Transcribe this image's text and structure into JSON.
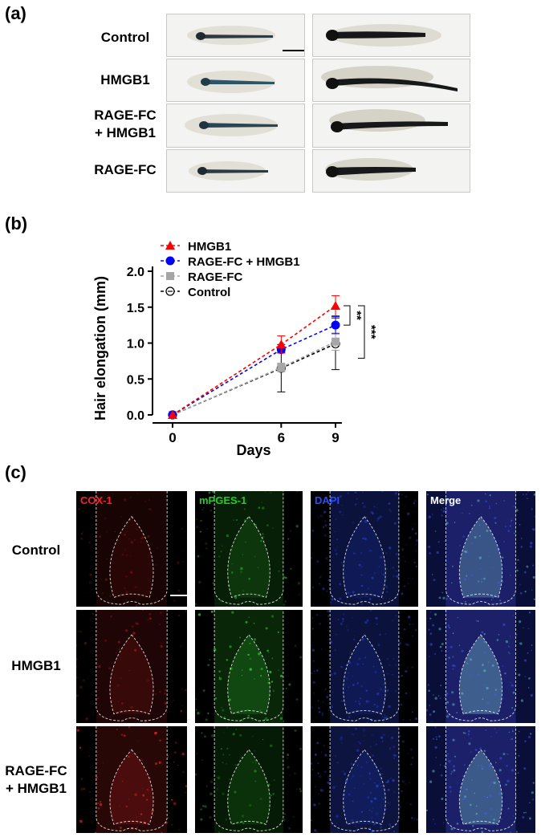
{
  "panels": {
    "a": "(a)",
    "b": "(b)",
    "c": "(c)"
  },
  "panel_a": {
    "rows": [
      {
        "label": [
          "Control"
        ]
      },
      {
        "label": [
          "HMGB1"
        ]
      },
      {
        "label": [
          "RAGE-FC",
          "+ HMGB1"
        ]
      },
      {
        "label": [
          "RAGE-FC"
        ]
      }
    ]
  },
  "chart_data": {
    "type": "line",
    "xlabel": "Days",
    "ylabel": "Hair elongation (mm)",
    "x": [
      0,
      6,
      9
    ],
    "xticks": [
      "0",
      "6",
      "9"
    ],
    "yticks": [
      "0.0",
      "0.5",
      "1.0",
      "1.5",
      "2.0"
    ],
    "ylim": [
      0,
      2.0
    ],
    "legend_position": "top-left",
    "series": [
      {
        "name": "HMGB1",
        "values": [
          0,
          0.98,
          1.52
        ],
        "error": [
          0,
          0.12,
          0.14
        ],
        "color": "#ff0000",
        "marker": "triangle"
      },
      {
        "name": "RAGE-FC + HMGB1",
        "values": [
          0,
          0.91,
          1.25
        ],
        "error": [
          0,
          0.04,
          0.12
        ],
        "color": "#0000ff",
        "marker": "circle"
      },
      {
        "name": "RAGE-FC",
        "values": [
          0,
          0.66,
          1.02
        ],
        "error": [
          0,
          0.06,
          0.12
        ],
        "color": "#a6a6a6",
        "marker": "square"
      },
      {
        "name": "Control",
        "values": [
          0,
          0.65,
          0.99
        ],
        "error": [
          0,
          0.33,
          0.36
        ],
        "color": "#000000",
        "marker": "open-circle"
      }
    ],
    "significance": [
      {
        "label": "**"
      },
      {
        "label": "***"
      }
    ]
  },
  "panel_c": {
    "channels": [
      {
        "label": "COX-1",
        "color": "#ff2020"
      },
      {
        "label": "mPGES-1",
        "color": "#22cc22"
      },
      {
        "label": "DAPI",
        "color": "#2a4bff"
      },
      {
        "label": "Merge",
        "color": "#ffffff"
      }
    ],
    "rows": [
      {
        "label": [
          "Control"
        ]
      },
      {
        "label": [
          "HMGB1"
        ]
      },
      {
        "label": [
          "RAGE-FC",
          "+ HMGB1"
        ]
      }
    ]
  }
}
